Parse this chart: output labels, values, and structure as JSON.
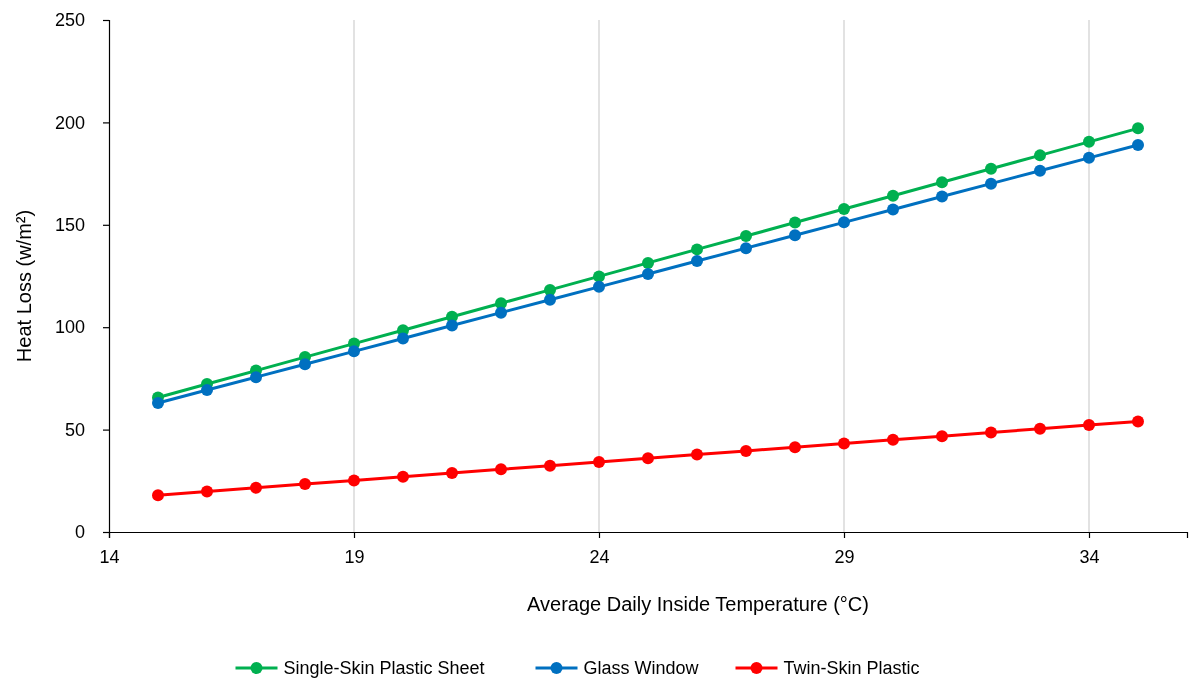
{
  "chart_data": {
    "type": "line",
    "xlabel": "Average Daily Inside Temperature (°C)",
    "ylabel": "Heat Loss (w/m²)",
    "x": [
      15,
      16,
      17,
      18,
      19,
      20,
      21,
      22,
      23,
      24,
      25,
      26,
      27,
      28,
      29,
      30,
      31,
      32,
      33,
      34,
      35
    ],
    "series": [
      {
        "name": "Single-Skin Plastic Sheet",
        "color": "#00b050",
        "values": [
          65.7,
          72.3,
          78.8,
          85.4,
          92,
          98.5,
          105.1,
          111.7,
          118.2,
          124.8,
          131.4,
          138,
          144.5,
          151.1,
          157.7,
          164.2,
          170.8,
          177.4,
          183.9,
          190.5,
          197.1
        ]
      },
      {
        "name": "Glass Window",
        "color": "#0070c0",
        "values": [
          63,
          69.3,
          75.6,
          81.9,
          88.2,
          94.5,
          100.8,
          107.1,
          113.4,
          119.7,
          126,
          132.3,
          138.6,
          144.9,
          151.2,
          157.5,
          163.8,
          170.1,
          176.4,
          182.7,
          189
        ]
      },
      {
        "name": "Twin-Skin Plastic",
        "color": "#ff0000",
        "values": [
          18,
          19.8,
          21.6,
          23.4,
          25.2,
          27,
          28.8,
          30.6,
          32.4,
          34.2,
          36,
          37.8,
          39.6,
          41.4,
          43.2,
          45,
          46.8,
          48.6,
          50.4,
          52.2,
          54
        ]
      }
    ],
    "xlim": [
      14,
      36
    ],
    "xticks": [
      14,
      19,
      24,
      29,
      34
    ],
    "ylim": [
      0,
      250
    ],
    "yticks": [
      0,
      50,
      100,
      150,
      200,
      250
    ],
    "grid": "x",
    "legend": "bottom",
    "marker": "circle",
    "line_style": "solid"
  }
}
